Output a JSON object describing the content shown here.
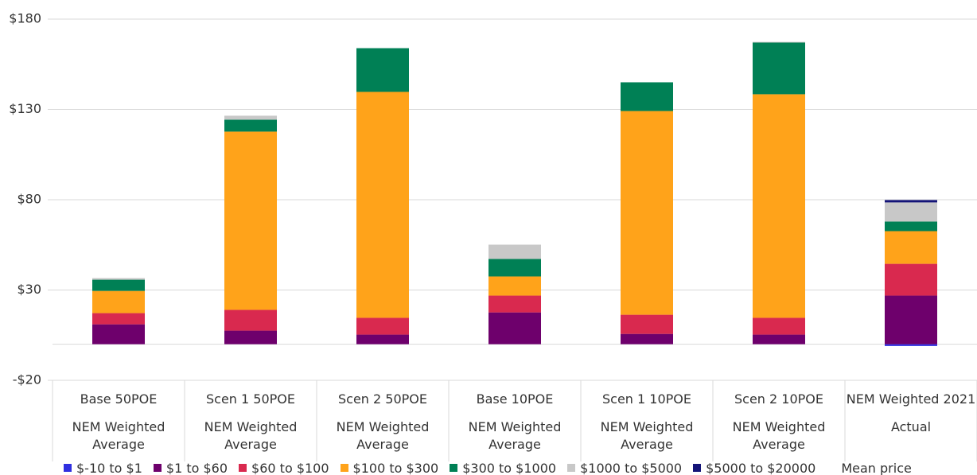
{
  "chart_data": {
    "type": "bar",
    "stacked": true,
    "categories": [
      [
        "Base  50POE",
        "NEM Weighted Average"
      ],
      [
        "Scen 1  50POE",
        "NEM Weighted Average"
      ],
      [
        "Scen 2  50POE",
        "NEM Weighted Average"
      ],
      [
        "Base  10POE",
        "NEM Weighted Average"
      ],
      [
        "Scen 1  10POE",
        "NEM Weighted Average"
      ],
      [
        "Scen 2  10POE",
        "NEM Weighted Average"
      ],
      [
        "NEM Weighted 2021",
        "Actual"
      ]
    ],
    "series": [
      {
        "name": "$-10 to $1",
        "color": "#2f2fe0",
        "values": [
          0,
          0,
          0,
          0,
          0,
          0,
          -1
        ]
      },
      {
        "name": "$1 to $60",
        "color": "#6e006c",
        "values": [
          11.0,
          7.5,
          5.3,
          17.6,
          5.7,
          5.3,
          26.9
        ]
      },
      {
        "name": "$60 to $100",
        "color": "#d9294f",
        "values": [
          6.2,
          11.5,
          9.3,
          9.3,
          10.6,
          9.3,
          17.6
        ]
      },
      {
        "name": "$100 to $300",
        "color": "#ffa31a",
        "values": [
          12.3,
          98.7,
          125.1,
          10.6,
          112.8,
          123.8,
          18.1
        ]
      },
      {
        "name": "$300 to $1000",
        "color": "#008055",
        "values": [
          6.2,
          6.6,
          24.2,
          9.7,
          15.9,
          28.6,
          5.3
        ]
      },
      {
        "name": "$1000 to $5000",
        "color": "#c8c8c8",
        "values": [
          0.9,
          2.2,
          0,
          7.9,
          0,
          0.4,
          10.6
        ]
      },
      {
        "name": "$5000 to $20000",
        "color": "#141478",
        "values": [
          0,
          0,
          0,
          0,
          0,
          0,
          1.3
        ]
      },
      {
        "name": "Mean price",
        "values": [
          null,
          null,
          null,
          null,
          null,
          null,
          null
        ]
      }
    ],
    "ylim": [
      -20,
      180
    ],
    "yticks": [
      {
        "value": -20,
        "label": "-$20"
      },
      {
        "value": 30,
        "label": "$30"
      },
      {
        "value": 80,
        "label": "$80"
      },
      {
        "value": 130,
        "label": "$130"
      },
      {
        "value": 180,
        "label": "$180"
      }
    ],
    "grid": true
  }
}
